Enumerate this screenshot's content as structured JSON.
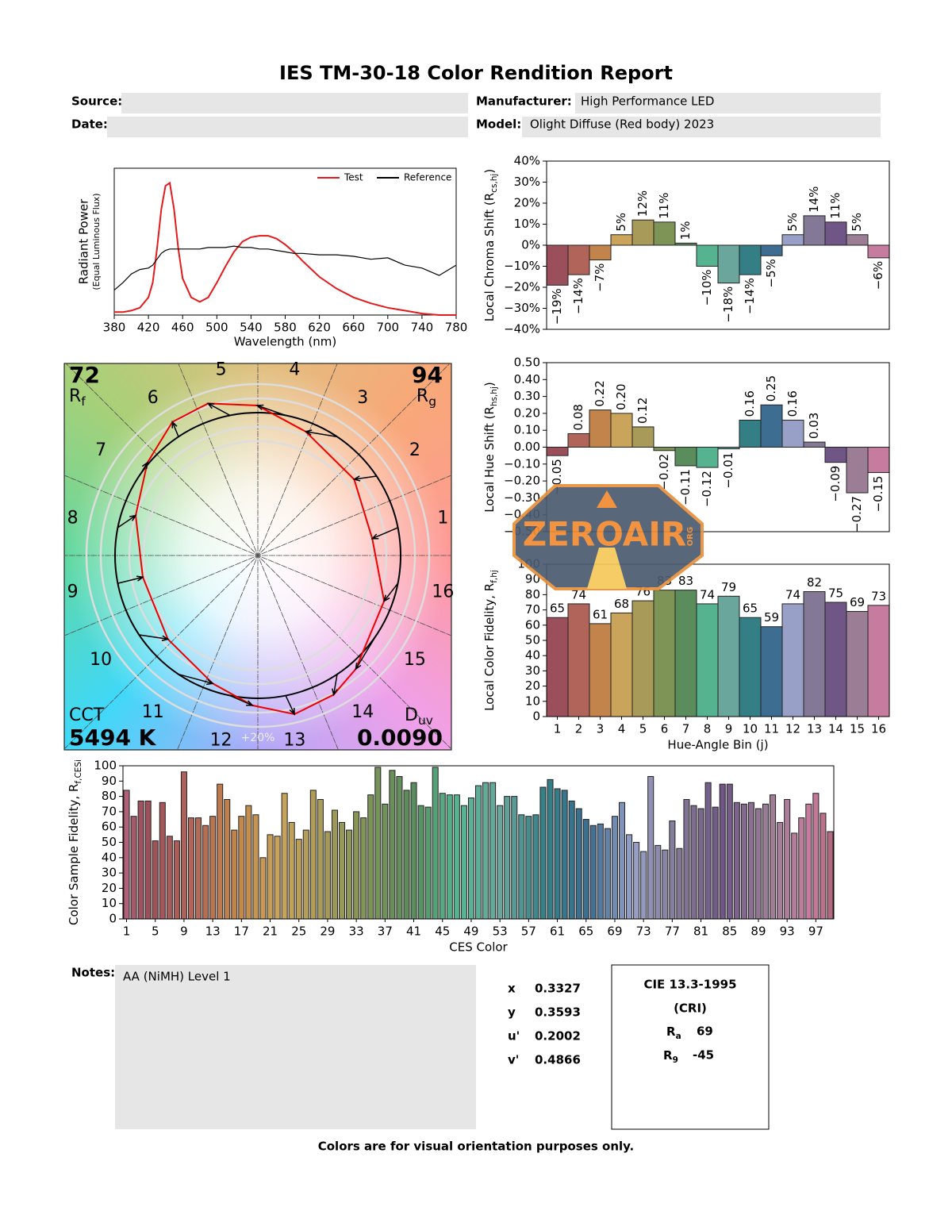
{
  "header": {
    "title": "IES TM-30-18 Color Rendition Report",
    "source_label": "Source:",
    "date_label": "Date:",
    "manufacturer_label": "Manufacturer:",
    "manufacturer": "High Performance LED",
    "model_label": "Model:",
    "model": "Olight Diffuse (Red body) 2023"
  },
  "chart_data": [
    {
      "type": "line",
      "xlabel": "Wavelength (nm)",
      "ylabel": "Radiant Power",
      "ylabel_note": "(Equal Luminous Flux)",
      "x": [
        380,
        390,
        400,
        410,
        420,
        425,
        430,
        435,
        440,
        445,
        450,
        455,
        460,
        470,
        480,
        490,
        500,
        510,
        520,
        530,
        540,
        550,
        560,
        570,
        580,
        590,
        600,
        620,
        640,
        660,
        680,
        700,
        720,
        740,
        760,
        780
      ],
      "series": [
        {
          "name": "Test",
          "color": "#e41a1c",
          "values": [
            0.02,
            0.02,
            0.03,
            0.05,
            0.12,
            0.22,
            0.45,
            0.72,
            0.88,
            0.9,
            0.72,
            0.45,
            0.25,
            0.12,
            0.09,
            0.12,
            0.22,
            0.33,
            0.43,
            0.5,
            0.53,
            0.54,
            0.54,
            0.52,
            0.48,
            0.43,
            0.37,
            0.26,
            0.18,
            0.12,
            0.08,
            0.05,
            0.03,
            0.01,
            0,
            0
          ]
        },
        {
          "name": "Reference",
          "color": "#000000",
          "values": [
            0.17,
            0.22,
            0.28,
            0.31,
            0.32,
            0.34,
            0.38,
            0.42,
            0.44,
            0.45,
            0.45,
            0.45,
            0.45,
            0.45,
            0.45,
            0.46,
            0.46,
            0.46,
            0.47,
            0.46,
            0.46,
            0.45,
            0.45,
            0.44,
            0.43,
            0.42,
            0.42,
            0.41,
            0.41,
            0.4,
            0.38,
            0.39,
            0.34,
            0.32,
            0.27,
            0.34
          ]
        }
      ],
      "xlim": [
        380,
        780
      ],
      "xticks": [
        380,
        420,
        460,
        500,
        540,
        580,
        620,
        660,
        700,
        740,
        780
      ],
      "ylim": [
        0,
        1
      ],
      "legend": "upper right"
    },
    {
      "type": "bar",
      "ylabel": "Local Chroma Shift (R",
      "ylabel_sub": "cs,hj",
      "ylabel_tail": ")",
      "values": [
        -19,
        -14,
        -7,
        5,
        12,
        11,
        1,
        -10,
        -18,
        -14,
        -5,
        5,
        14,
        11,
        5,
        -6
      ],
      "value_labels": [
        "−19%",
        "−14%",
        "−7%",
        "5%",
        "12%",
        "11%",
        "1%",
        "−10%",
        "−18%",
        "−14%",
        "−5%",
        "5%",
        "14%",
        "11%",
        "5%",
        "−6%"
      ],
      "ylim": [
        -40,
        40
      ],
      "yticks": [
        {
          "value": 40,
          "label": "40%"
        },
        {
          "value": 30,
          "label": "30%"
        },
        {
          "value": 20,
          "label": "20%"
        },
        {
          "value": 10,
          "label": "10%"
        },
        {
          "value": 0,
          "label": "0%"
        },
        {
          "value": -10,
          "label": "−10%"
        },
        {
          "value": -20,
          "label": "−20%"
        },
        {
          "value": -30,
          "label": "−30%"
        },
        {
          "value": -40,
          "label": "−40%"
        }
      ]
    },
    {
      "type": "bar",
      "ylabel": "Local Hue Shift (R",
      "ylabel_sub": "hs,hj",
      "ylabel_tail": ")",
      "values": [
        -0.05,
        0.08,
        0.22,
        0.2,
        0.12,
        -0.02,
        -0.11,
        -0.12,
        -0.01,
        0.16,
        0.25,
        0.16,
        0.03,
        -0.09,
        -0.27,
        -0.15
      ],
      "value_labels": [
        "−0.05",
        "0.08",
        "0.22",
        "0.20",
        "0.12",
        "−0.02",
        "−0.11",
        "−0.12",
        "−0.01",
        "0.16",
        "0.25",
        "0.16",
        "0.03",
        "−0.09",
        "−0.27",
        "−0.15"
      ],
      "ylim": [
        -0.5,
        0.5
      ],
      "yticks": [
        {
          "value": 0.5,
          "label": "0.50"
        },
        {
          "value": 0.4,
          "label": "0.40"
        },
        {
          "value": 0.3,
          "label": "0.30"
        },
        {
          "value": 0.2,
          "label": "0.20"
        },
        {
          "value": 0.1,
          "label": "0.10"
        },
        {
          "value": 0,
          "label": "0.00"
        },
        {
          "value": -0.1,
          "label": "−0.10"
        },
        {
          "value": -0.2,
          "label": "−0.20"
        },
        {
          "value": -0.3,
          "label": "−0.30"
        },
        {
          "value": -0.4,
          "label": "−0.40"
        },
        {
          "value": -0.5,
          "label": "−0.50"
        }
      ]
    },
    {
      "type": "bar",
      "xlabel": "Hue-Angle Bin (j)",
      "ylabel": "Local Color Fidelity, R",
      "ylabel_sub": "f,hj",
      "ylabel_tail": "",
      "categories": [
        "1",
        "2",
        "3",
        "4",
        "5",
        "6",
        "7",
        "8",
        "9",
        "10",
        "11",
        "12",
        "13",
        "14",
        "15",
        "16"
      ],
      "values": [
        65,
        74,
        61,
        68,
        76,
        83,
        83,
        74,
        79,
        65,
        59,
        74,
        82,
        75,
        69,
        73
      ],
      "colors": [
        "#9b4f5a",
        "#b0645a",
        "#c2844a",
        "#c9a45a",
        "#a89a58",
        "#7e9457",
        "#5a8c5c",
        "#55b48f",
        "#6aa69b",
        "#347f86",
        "#3d6d91",
        "#98a0c8",
        "#837996",
        "#6f5687",
        "#9b7d95",
        "#c67c9e"
      ],
      "ylim": [
        0,
        100
      ],
      "yticks": [
        0,
        10,
        20,
        30,
        40,
        50,
        60,
        70,
        80,
        90,
        100
      ]
    },
    {
      "type": "bar",
      "xlabel": "CES Color",
      "ylabel": "Color Sample Fidelity, R",
      "ylabel_sub": "f,CESi",
      "ylabel_tail": "",
      "categories": [
        "1",
        null,
        null,
        null,
        "5",
        null,
        null,
        null,
        "9",
        null,
        null,
        null,
        "13",
        null,
        null,
        null,
        "17",
        null,
        null,
        null,
        "21",
        null,
        null,
        null,
        "25",
        null,
        null,
        null,
        "29",
        null,
        null,
        null,
        "33",
        null,
        null,
        null,
        "37",
        null,
        null,
        null,
        "41",
        null,
        null,
        null,
        "45",
        null,
        null,
        null,
        "49",
        null,
        null,
        null,
        "53",
        null,
        null,
        null,
        "57",
        null,
        null,
        null,
        "61",
        null,
        null,
        null,
        "65",
        null,
        null,
        null,
        "69",
        null,
        null,
        null,
        "73",
        null,
        null,
        null,
        "77",
        null,
        null,
        null,
        "81",
        null,
        null,
        null,
        "85",
        null,
        null,
        null,
        "89",
        null,
        null,
        null,
        "93",
        null,
        null,
        null,
        "97",
        null,
        null
      ],
      "values": [
        84,
        67,
        77,
        77,
        51,
        76,
        54,
        51,
        96,
        66,
        66,
        61,
        67,
        88,
        78,
        58,
        67,
        74,
        68,
        40,
        55,
        54,
        82,
        63,
        52,
        58,
        84,
        78,
        57,
        71,
        63,
        58,
        70,
        66,
        81,
        99,
        75,
        97,
        93,
        84,
        89,
        74,
        73,
        99,
        82,
        81,
        81,
        74,
        79,
        87,
        89,
        89,
        74,
        80,
        80,
        68,
        67,
        68,
        86,
        91,
        85,
        84,
        77,
        72,
        65,
        61,
        62,
        59,
        67,
        76,
        55,
        50,
        44,
        93,
        48,
        45,
        64,
        46,
        78,
        74,
        72,
        89,
        73,
        88,
        88,
        76,
        75,
        76,
        72,
        75,
        81,
        63,
        78,
        56,
        66,
        75,
        82,
        69,
        57
      ],
      "ylim": [
        0,
        100
      ],
      "yticks": [
        0,
        10,
        20,
        30,
        40,
        50,
        60,
        70,
        80,
        90,
        100
      ]
    }
  ],
  "color_vector_graphic": {
    "rf": 72,
    "rf_label": "R",
    "rf_sub": "f",
    "rg": 94,
    "rg_label": "R",
    "rg_sub": "g",
    "cct_label": "CCT",
    "cct": "5494 K",
    "duv_label": "D",
    "duv_sub": "uv",
    "duv": "0.0090",
    "scale_label": "+20%",
    "bin_labels": [
      "1",
      "2",
      "3",
      "4",
      "5",
      "6",
      "7",
      "8",
      "9",
      "10",
      "11",
      "12",
      "13",
      "14",
      "15",
      "16"
    ]
  },
  "notes": {
    "label": "Notes:",
    "text": "AA (NiMH) Level 1"
  },
  "chromaticity": [
    {
      "label": "x",
      "value": 0.3327
    },
    {
      "label": "y",
      "value": 0.3593
    },
    {
      "label": "u'",
      "value": 0.2002
    },
    {
      "label": "v'",
      "value": 0.4866
    }
  ],
  "cri": {
    "title": "CIE 13.3-1995",
    "subtitle": "(CRI)",
    "ra_label": "R",
    "ra_sub": "a",
    "ra": 69,
    "r9_label": "R",
    "r9_sub": "9",
    "r9": -45
  },
  "footer": "Colors are for visual orientation purposes only.",
  "watermark": {
    "text": "ZEROAIR",
    "suffix": "ORG"
  }
}
